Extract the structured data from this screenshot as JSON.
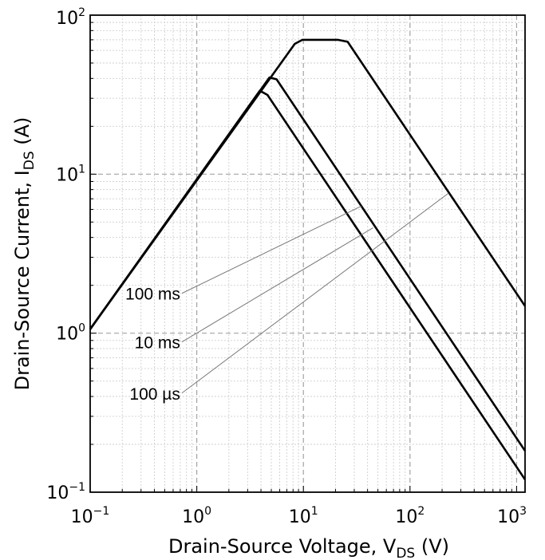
{
  "chart_data": {
    "type": "line",
    "title": "",
    "x_scale": "log",
    "y_scale": "log",
    "xlim": [
      0.1,
      1200
    ],
    "ylim": [
      0.1,
      100
    ],
    "grid": true,
    "xlabel": {
      "main": "Drain-Source Voltage, V",
      "sub": "DS",
      "unit": " (V)"
    },
    "ylabel": {
      "main": "Drain-Source Current, I",
      "sub": "DS",
      "unit": " (A)"
    },
    "x_ticks": [
      {
        "base": "10",
        "exp": "−1",
        "value": 0.1
      },
      {
        "base": "10",
        "exp": "0",
        "value": 1
      },
      {
        "base": "10",
        "exp": "1",
        "value": 10
      },
      {
        "base": "10",
        "exp": "2",
        "value": 100
      },
      {
        "base": "10",
        "exp": "3",
        "value": 1000
      }
    ],
    "y_ticks": [
      {
        "base": "10",
        "exp": "−1",
        "value": 0.1
      },
      {
        "base": "10",
        "exp": "0",
        "value": 1
      },
      {
        "base": "10",
        "exp": "1",
        "value": 10
      },
      {
        "base": "10",
        "exp": "2",
        "value": 100
      }
    ],
    "series": [
      {
        "label": "100 µs",
        "points": [
          [
            0.1,
            1.06
          ],
          [
            8.3,
            66
          ],
          [
            9.8,
            70
          ],
          [
            21,
            70
          ],
          [
            26,
            68
          ],
          [
            1200,
            1.48
          ]
        ]
      },
      {
        "label": "10 ms",
        "points": [
          [
            0.1,
            1.06
          ],
          [
            4.8,
            40.5
          ],
          [
            5.6,
            39.5
          ],
          [
            1200,
            0.182
          ]
        ]
      },
      {
        "label": "100 ms",
        "points": [
          [
            0.1,
            1.06
          ],
          [
            3.9,
            33.5
          ],
          [
            4.6,
            31.5
          ],
          [
            1200,
            0.12
          ]
        ]
      }
    ],
    "annotations": [
      {
        "text": "100 ms",
        "target": [
          35,
          6.3
        ],
        "label_anchor": [
          0.7,
          1.78
        ]
      },
      {
        "text": "10 ms",
        "target": [
          45,
          4.6
        ],
        "label_anchor": [
          0.7,
          0.88
        ]
      },
      {
        "text": "100 µs",
        "target": [
          230,
          7.6
        ],
        "label_anchor": [
          0.7,
          0.42
        ]
      }
    ]
  }
}
